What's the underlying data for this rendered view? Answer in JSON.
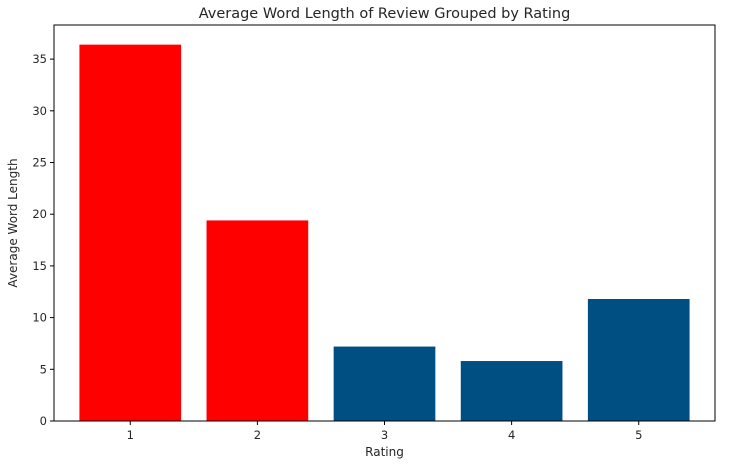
{
  "chart_data": {
    "type": "bar",
    "title": "Average Word Length of Review Grouped by Rating",
    "xlabel": "Rating",
    "ylabel": "Average Word Length",
    "categories": [
      "1",
      "2",
      "3",
      "4",
      "5"
    ],
    "values": [
      36.4,
      19.4,
      7.2,
      5.8,
      11.8
    ],
    "bar_colors": [
      "#ff0000",
      "#ff0000",
      "#004f82",
      "#004f82",
      "#004f82"
    ],
    "ylim": [
      0,
      38.3
    ],
    "yticks": [
      0,
      5,
      10,
      15,
      20,
      25,
      30,
      35
    ],
    "grid": false,
    "legend": "none"
  }
}
